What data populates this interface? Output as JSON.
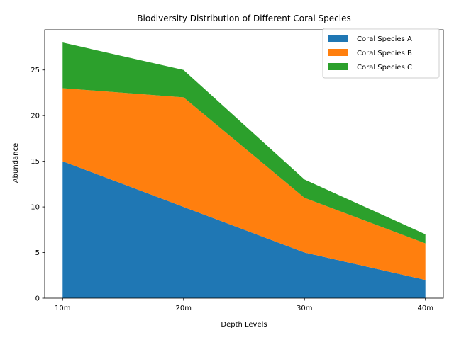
{
  "chart_data": {
    "type": "area",
    "stacked": true,
    "title": "Biodiversity Distribution of Different Coral Species",
    "xlabel": "Depth Levels",
    "ylabel": "Abundance",
    "categories": [
      "10m",
      "20m",
      "30m",
      "40m"
    ],
    "series": [
      {
        "name": "Coral Species A",
        "values": [
          15,
          10,
          5,
          2
        ],
        "color": "#1f77b4"
      },
      {
        "name": "Coral Species B",
        "values": [
          8,
          12,
          6,
          4
        ],
        "color": "#ff7f0e"
      },
      {
        "name": "Coral Species C",
        "values": [
          5,
          3,
          2,
          1
        ],
        "color": "#2ca02c"
      }
    ],
    "ylim": [
      0,
      29.4
    ],
    "yticks": [
      0,
      5,
      10,
      15,
      20,
      25
    ],
    "grid": false,
    "legend_position": "top-right"
  }
}
